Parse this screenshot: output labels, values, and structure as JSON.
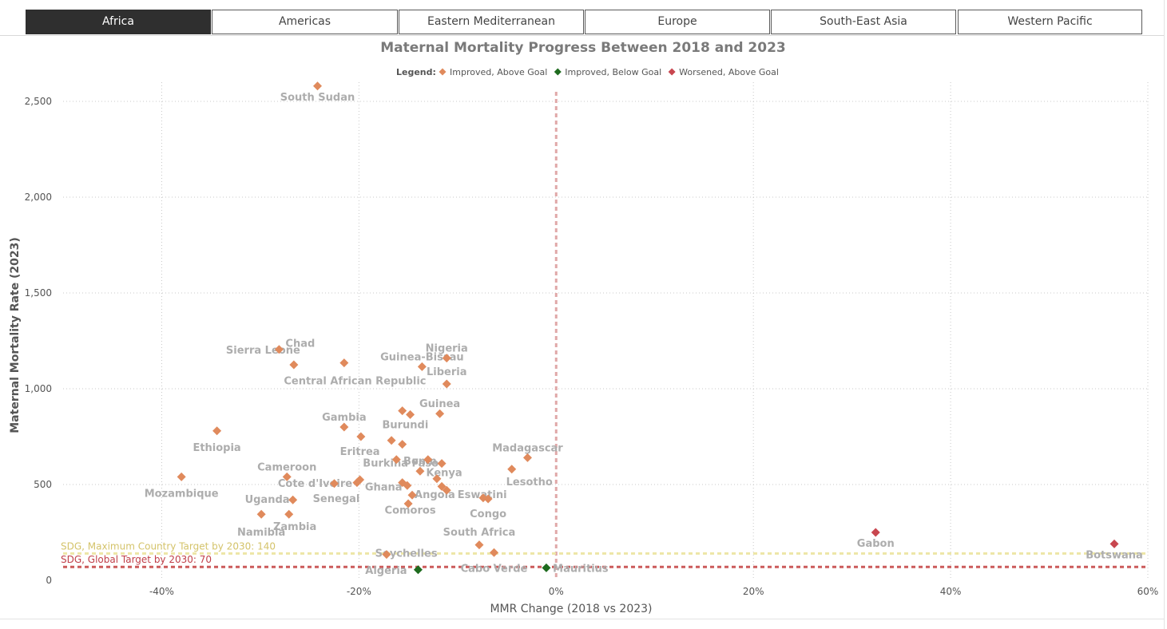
{
  "tabs": [
    {
      "label": "Africa",
      "active": true
    },
    {
      "label": "Americas",
      "active": false
    },
    {
      "label": "Eastern Mediterranean",
      "active": false
    },
    {
      "label": "Europe",
      "active": false
    },
    {
      "label": "South-East Asia",
      "active": false
    },
    {
      "label": "Western Pacific",
      "active": false
    }
  ],
  "chart_data": {
    "type": "scatter",
    "title": "Maternal Mortality Progress Between 2018 and 2023",
    "xlabel": "MMR Change (2018 vs 2023)",
    "ylabel": "Maternal Mortality Rate (2023)",
    "xlim": [
      -50,
      60
    ],
    "ylim": [
      0,
      2600
    ],
    "x_ticks": [
      -40,
      -20,
      0,
      20,
      40,
      60
    ],
    "x_tick_labels": [
      "-40%",
      "-20%",
      "0%",
      "20%",
      "40%",
      "60%"
    ],
    "y_ticks": [
      0,
      500,
      1000,
      1500,
      2000,
      2500
    ],
    "y_tick_labels": [
      "0",
      "500",
      "1,000",
      "1,500",
      "2,000",
      "2,500"
    ],
    "grid": true,
    "legend": {
      "title": "Legend:",
      "position": "top-center",
      "entries": [
        {
          "name": "Improved, Above Goal",
          "color": "#e08a5c"
        },
        {
          "name": "Improved, Below Goal",
          "color": "#1e6b1e"
        },
        {
          "name": "Worsened, Above Goal",
          "color": "#c8464f"
        }
      ]
    },
    "reference_lines": [
      {
        "axis": "x",
        "value": 0,
        "color": "#e0a8a8"
      },
      {
        "axis": "y",
        "value": 140,
        "label": "SDG, Maximum Country Target by 2030: 140",
        "color": "#ede6a6",
        "label_color": "#d4c36a"
      },
      {
        "axis": "y",
        "value": 70,
        "label": "SDG, Global Target by 2030: 70",
        "color": "#cc5b5b",
        "label_color": "#c0404a"
      }
    ],
    "points": [
      {
        "label": "South Sudan",
        "x": -24.2,
        "y": 2580,
        "category": 0
      },
      {
        "label": "Nigeria",
        "x": -11.1,
        "y": 1160,
        "category": 0
      },
      {
        "label": "Sierra Leone",
        "x": -28.1,
        "y": 1205,
        "category": 0
      },
      {
        "label": "Chad",
        "x": -21.5,
        "y": 1135,
        "category": 0
      },
      {
        "label": "",
        "x": -26.6,
        "y": 1125,
        "category": 0
      },
      {
        "label": "Guinea-Bissau",
        "x": -13.6,
        "y": 1115,
        "category": 0
      },
      {
        "label": "Liberia",
        "x": -11.1,
        "y": 1025,
        "category": 0
      },
      {
        "label": "",
        "x": -15.6,
        "y": 885,
        "category": 0
      },
      {
        "label": "",
        "x": -14.8,
        "y": 865,
        "category": 0
      },
      {
        "label": "Guinea",
        "x": -11.8,
        "y": 870,
        "category": 0
      },
      {
        "label": "Ethiopia",
        "x": -34.4,
        "y": 780,
        "category": 0
      },
      {
        "label": "Gambia",
        "x": -21.5,
        "y": 800,
        "category": 0
      },
      {
        "label": "",
        "x": -19.8,
        "y": 750,
        "category": 0
      },
      {
        "label": "",
        "x": -16.7,
        "y": 730,
        "category": 0
      },
      {
        "label": "",
        "x": -15.6,
        "y": 710,
        "category": 0
      },
      {
        "label": "Madagascar",
        "x": -2.9,
        "y": 640,
        "category": 0
      },
      {
        "label": "",
        "x": -13.0,
        "y": 630,
        "category": 0
      },
      {
        "label": "",
        "x": -16.2,
        "y": 630,
        "category": 0
      },
      {
        "label": "",
        "x": -11.6,
        "y": 610,
        "category": 0
      },
      {
        "label": "Lesotho",
        "x": -4.5,
        "y": 580,
        "category": 0
      },
      {
        "label": "Benin",
        "x": -13.8,
        "y": 570,
        "category": 0
      },
      {
        "label": "Mozambique",
        "x": -38.0,
        "y": 540,
        "category": 0
      },
      {
        "label": "Cameroon",
        "x": -27.3,
        "y": 540,
        "category": 0
      },
      {
        "label": "",
        "x": -12.1,
        "y": 530,
        "category": 0
      },
      {
        "label": "",
        "x": -19.9,
        "y": 525,
        "category": 0
      },
      {
        "label": "Cote d'Ivoire",
        "x": -22.5,
        "y": 505,
        "category": 0
      },
      {
        "label": "",
        "x": -20.2,
        "y": 510,
        "category": 0
      },
      {
        "label": "Burkina Faso",
        "x": -15.6,
        "y": 510,
        "category": 0
      },
      {
        "label": "",
        "x": -15.1,
        "y": 495,
        "category": 0
      },
      {
        "label": "Kenya",
        "x": -11.6,
        "y": 490,
        "category": 0
      },
      {
        "label": "",
        "x": -11.1,
        "y": 470,
        "category": 0
      },
      {
        "label": "",
        "x": -14.6,
        "y": 445,
        "category": 0
      },
      {
        "label": "",
        "x": -7.4,
        "y": 430,
        "category": 0
      },
      {
        "label": "",
        "x": -6.9,
        "y": 425,
        "category": 0
      },
      {
        "label": "",
        "x": -26.7,
        "y": 420,
        "category": 0
      },
      {
        "label": "",
        "x": -15.0,
        "y": 400,
        "category": 0
      },
      {
        "label": "Namibia",
        "x": -29.9,
        "y": 345,
        "category": 0
      },
      {
        "label": "",
        "x": -27.1,
        "y": 345,
        "category": 0
      },
      {
        "label": "",
        "x": -7.8,
        "y": 185,
        "category": 0
      },
      {
        "label": "",
        "x": -6.3,
        "y": 145,
        "category": 0
      },
      {
        "label": "",
        "x": -17.2,
        "y": 135,
        "category": 0
      },
      {
        "label": "Algeria",
        "x": -14.0,
        "y": 55,
        "category": 1
      },
      {
        "label": "Mauritius",
        "x": -1.0,
        "y": 65,
        "category": 1
      },
      {
        "label": "Gabon",
        "x": 32.4,
        "y": 250,
        "category": 2
      },
      {
        "label": "Botswana",
        "x": 56.6,
        "y": 190,
        "category": 2
      }
    ],
    "text_labels": [
      {
        "text": "Burundi",
        "x": -15.3,
        "y": 810
      },
      {
        "text": "Eritrea",
        "x": -19.9,
        "y": 670
      },
      {
        "text": "Ghana",
        "x": -17.5,
        "y": 485
      },
      {
        "text": "Angola",
        "x": -12.3,
        "y": 445
      },
      {
        "text": "Eswatini",
        "x": -7.5,
        "y": 445
      },
      {
        "text": "Uganda",
        "x": -29.3,
        "y": 420
      },
      {
        "text": "Senegal",
        "x": -22.3,
        "y": 425
      },
      {
        "text": "Comoros",
        "x": -14.8,
        "y": 365
      },
      {
        "text": "Congo",
        "x": -6.9,
        "y": 345
      },
      {
        "text": "Central African Republic",
        "x": -20.4,
        "y": 1040
      },
      {
        "text": "Zambia",
        "x": -26.5,
        "y": 280
      },
      {
        "text": "South Africa",
        "x": -7.8,
        "y": 250
      },
      {
        "text": "Seychelles",
        "x": -15.2,
        "y": 140
      },
      {
        "text": "Cabo Verde",
        "x": -6.3,
        "y": 60
      }
    ]
  }
}
